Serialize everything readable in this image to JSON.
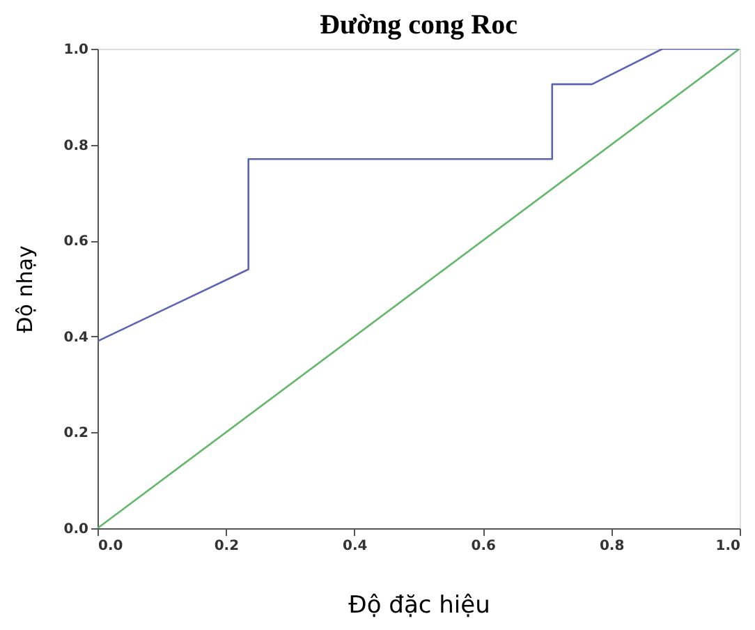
{
  "chart_data": {
    "type": "line",
    "title": "Đường cong Roc",
    "xlabel": "Độ đặc hiệu",
    "ylabel": "Độ nhạy",
    "series": [
      {
        "color": "#5b64b4",
        "x": [
          0,
          0.235,
          0.235,
          0.708,
          0.708,
          0.77,
          0.88,
          1.0
        ],
        "values": [
          0.39,
          0.54,
          0.77,
          0.77,
          0.926,
          0.926,
          1.0,
          1.0
        ]
      },
      {
        "color": "#62b86a",
        "x": [
          0,
          1.0
        ],
        "values": [
          0,
          1.0
        ]
      }
    ],
    "xlim": [
      0,
      1.0
    ],
    "ylim": [
      0,
      1.0
    ],
    "xticks": [
      {
        "value": 0,
        "label": "0.0"
      },
      0.2,
      0.4,
      0.6,
      0.8,
      {
        "value": 1.0,
        "label": "1.0"
      }
    ],
    "yticks": [
      {
        "value": 0,
        "label": "0.0"
      },
      0.2,
      0.4,
      0.6,
      0.8,
      {
        "value": 1.0,
        "label": "1.0"
      }
    ],
    "grid": false,
    "legend": false,
    "marker": "none",
    "line_style": "solid"
  }
}
